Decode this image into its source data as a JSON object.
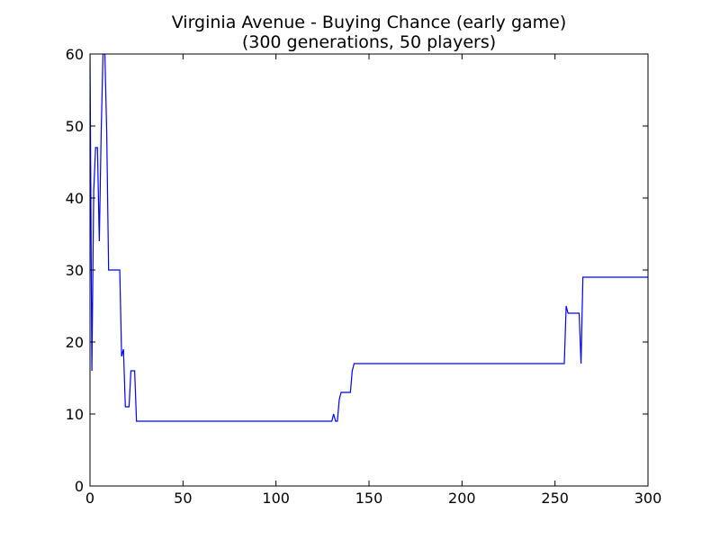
{
  "chart_data": {
    "type": "line",
    "title": "Virginia Avenue - Buying Chance (early game)",
    "subtitle": "(300 generations, 50 players)",
    "xlabel": "",
    "ylabel": "",
    "xlim": [
      0,
      300
    ],
    "ylim": [
      0,
      60
    ],
    "xticks": [
      0,
      50,
      100,
      150,
      200,
      250,
      300
    ],
    "yticks": [
      0,
      10,
      20,
      30,
      40,
      50,
      60
    ],
    "grid": false,
    "series_color": "#0000ff",
    "series": [
      {
        "points": [
          [
            0,
            60
          ],
          [
            1,
            16
          ],
          [
            2,
            41
          ],
          [
            3,
            47
          ],
          [
            4,
            47
          ],
          [
            5,
            34
          ],
          [
            6,
            49
          ],
          [
            7,
            60
          ],
          [
            8,
            60
          ],
          [
            9,
            49
          ],
          [
            10,
            30
          ],
          [
            16,
            30
          ],
          [
            17,
            18
          ],
          [
            18,
            19
          ],
          [
            19,
            11
          ],
          [
            21,
            11
          ],
          [
            22,
            16
          ],
          [
            24,
            16
          ],
          [
            25,
            9
          ],
          [
            130,
            9
          ],
          [
            131,
            10
          ],
          [
            132,
            9
          ],
          [
            133,
            9
          ],
          [
            134,
            12
          ],
          [
            135,
            13
          ],
          [
            140,
            13
          ],
          [
            141,
            16
          ],
          [
            142,
            17
          ],
          [
            255,
            17
          ],
          [
            256,
            25
          ],
          [
            257,
            24
          ],
          [
            263,
            24
          ],
          [
            264,
            17
          ],
          [
            265,
            29
          ],
          [
            300,
            29
          ]
        ]
      }
    ]
  }
}
